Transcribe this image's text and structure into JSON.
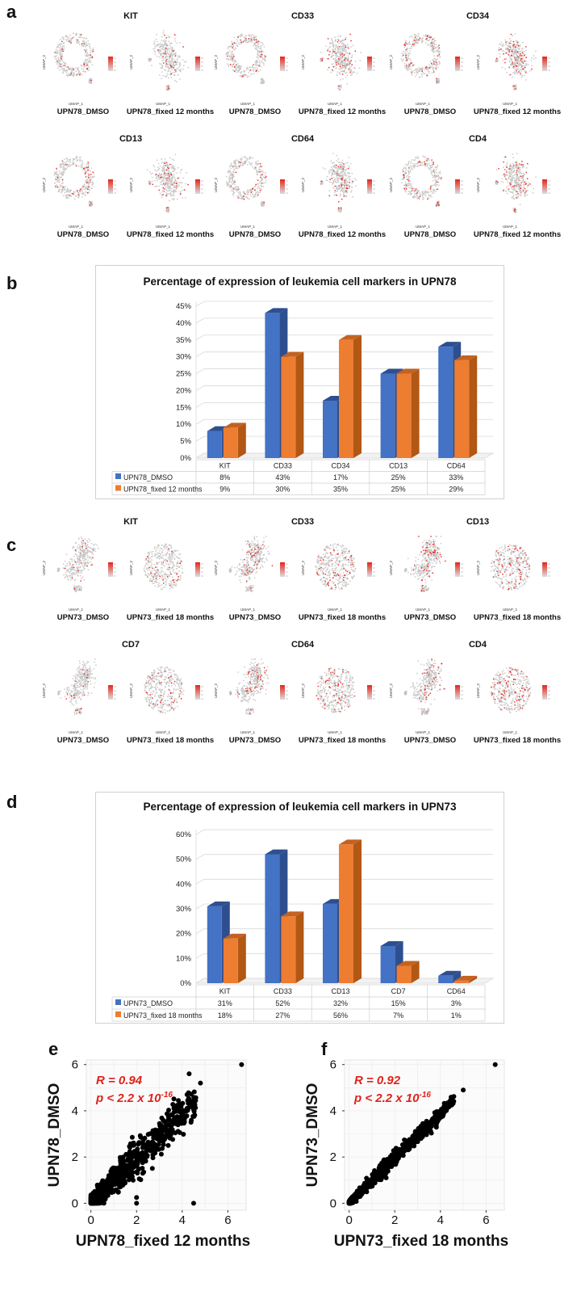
{
  "panel_labels": {
    "a": "a",
    "b": "b",
    "c": "c",
    "d": "d",
    "e": "e",
    "f": "f"
  },
  "panel_a": {
    "genes": [
      "KIT",
      "CD33",
      "CD34",
      "CD13",
      "CD64",
      "CD4"
    ],
    "conditions": [
      "UPN78_DMSO",
      "UPN78_fixed 12 months"
    ],
    "axis_x": "UMAP_1",
    "axis_y": "UMAP_2"
  },
  "panel_c": {
    "genes": [
      "KIT",
      "CD33",
      "CD13",
      "CD7",
      "CD64",
      "CD4"
    ],
    "conditions": [
      "UPN73_DMSO",
      "UPN73_fixed 18 months"
    ],
    "axis_x": "UMAP_1",
    "axis_y": "UMAP_2"
  },
  "colors": {
    "dmso": "#4472C4",
    "fixed": "#ED7D31",
    "highlight": "#E0221B",
    "umap_gray": "#c8c8c8"
  },
  "chart_data": [
    {
      "type": "bar",
      "title": "Percentage of expression of leukemia cell markers in UPN78",
      "categories": [
        "KIT",
        "CD33",
        "CD34",
        "CD13",
        "CD64"
      ],
      "series": [
        {
          "name": "UPN78_DMSO",
          "values": [
            8,
            43,
            17,
            25,
            33
          ],
          "labels": [
            "8%",
            "43%",
            "17%",
            "25%",
            "33%"
          ]
        },
        {
          "name": "UPN78_fixed 12 months",
          "values": [
            9,
            30,
            35,
            25,
            29
          ],
          "labels": [
            "9%",
            "30%",
            "35%",
            "25%",
            "29%"
          ]
        }
      ],
      "ylim": [
        0,
        45
      ],
      "yticks": [
        "0%",
        "5%",
        "10%",
        "15%",
        "20%",
        "25%",
        "30%",
        "35%",
        "40%",
        "45%"
      ],
      "xlabel": "",
      "ylabel": ""
    },
    {
      "type": "bar",
      "title": "Percentage of expression of leukemia cell markers in UPN73",
      "categories": [
        "KIT",
        "CD33",
        "CD13",
        "CD7",
        "CD64"
      ],
      "series": [
        {
          "name": "UPN73_DMSO",
          "values": [
            31,
            52,
            32,
            15,
            3
          ],
          "labels": [
            "31%",
            "52%",
            "32%",
            "15%",
            "3%"
          ]
        },
        {
          "name": "UPN73_fixed 18 months",
          "values": [
            18,
            27,
            56,
            7,
            1
          ],
          "labels": [
            "18%",
            "27%",
            "56%",
            "7%",
            "1%"
          ]
        }
      ],
      "ylim": [
        0,
        60
      ],
      "yticks": [
        "0%",
        "10%",
        "20%",
        "30%",
        "40%",
        "50%",
        "60%"
      ],
      "xlabel": "",
      "ylabel": ""
    },
    {
      "type": "scatter",
      "title": "",
      "xlabel": "UPN78_fixed 12 months",
      "ylabel": "UPN78_DMSO",
      "annotation_r": "R = 0.94",
      "annotation_p": "p < 2.2 x 10",
      "annotation_exp": "-16",
      "xlim": [
        -0.2,
        6.8
      ],
      "ylim": [
        -0.3,
        6.2
      ],
      "xticks": [
        "0",
        "2",
        "4",
        "6"
      ],
      "yticks": [
        "0",
        "2",
        "4",
        "6"
      ],
      "r": 0.94,
      "outliers": [
        [
          6.6,
          6.0
        ],
        [
          4.8,
          5.2
        ],
        [
          2.0,
          0.0
        ],
        [
          4.5,
          0.0
        ],
        [
          2.0,
          0.25
        ]
      ]
    },
    {
      "type": "scatter",
      "title": "",
      "xlabel": "UPN73_fixed 18 months",
      "ylabel": "UPN73_DMSO",
      "annotation_r": "R = 0.92",
      "annotation_p": "p < 2.2 x 10",
      "annotation_exp": "-16",
      "xlim": [
        -0.2,
        6.8
      ],
      "ylim": [
        -0.3,
        6.2
      ],
      "xticks": [
        "0",
        "2",
        "4",
        "6"
      ],
      "yticks": [
        "0",
        "2",
        "4",
        "6"
      ],
      "r": 0.92,
      "outliers": [
        [
          6.4,
          6.0
        ],
        [
          5.0,
          4.9
        ],
        [
          4.5,
          4.5
        ]
      ]
    }
  ]
}
